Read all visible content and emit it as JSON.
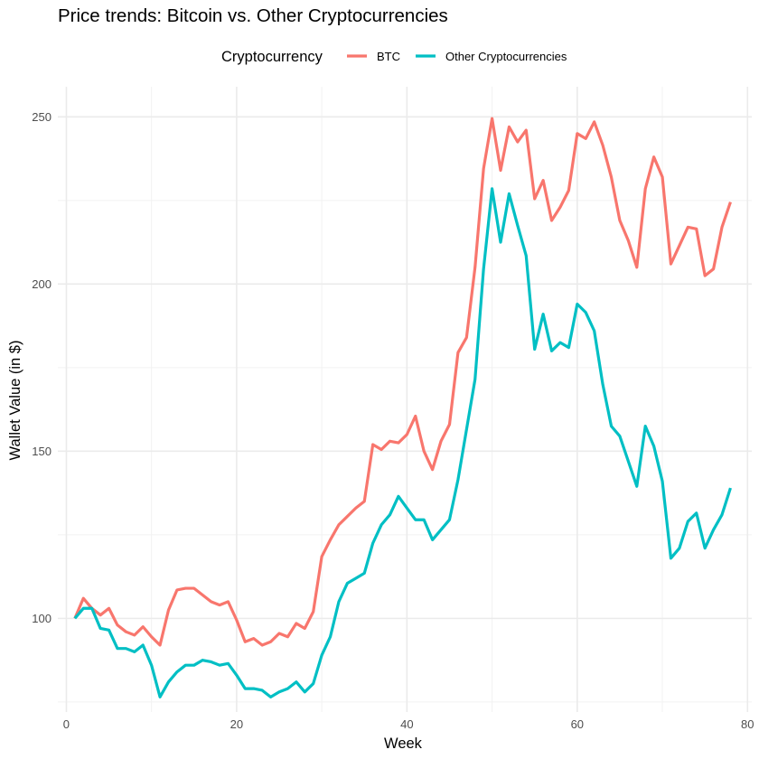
{
  "chart_data": {
    "type": "line",
    "title": "Price trends: Bitcoin vs. Other Cryptocurrencies",
    "xlabel": "Week",
    "ylabel": "Wallet Value (in $)",
    "xlim": [
      -1,
      80.5
    ],
    "ylim": [
      72,
      259
    ],
    "x_ticks": [
      0,
      20,
      40,
      60,
      80
    ],
    "y_ticks": [
      100,
      150,
      200,
      250
    ],
    "x_minor": [
      10,
      30,
      50,
      70
    ],
    "y_minor": [
      75,
      125,
      175,
      225
    ],
    "grid": true,
    "legend": {
      "title": "Cryptocurrency",
      "position": "top"
    },
    "series": [
      {
        "name": "BTC",
        "color": "#F8766D",
        "x": [
          1,
          2,
          3,
          4,
          5,
          6,
          7,
          8,
          9,
          10,
          11,
          12,
          13,
          14,
          15,
          16,
          17,
          18,
          19,
          20,
          21,
          22,
          23,
          24,
          25,
          26,
          27,
          28,
          29,
          30,
          31,
          32,
          33,
          34,
          35,
          36,
          37,
          38,
          39,
          40,
          41,
          42,
          43,
          44,
          45,
          46,
          47,
          48,
          49,
          50,
          51,
          52,
          53,
          54,
          55,
          56,
          57,
          58,
          59,
          60,
          61,
          62,
          63,
          64,
          65,
          66,
          67,
          68,
          69,
          70,
          71,
          72,
          73,
          74,
          75,
          76,
          77,
          78
        ],
        "values": [
          100,
          106,
          103,
          101,
          103,
          98,
          96,
          95,
          97.5,
          94.5,
          92,
          102.5,
          108.5,
          109,
          109,
          107,
          105,
          104,
          105,
          99.5,
          93,
          94,
          92,
          93,
          95.5,
          94.5,
          98.5,
          97,
          102,
          118.5,
          123.5,
          128,
          130.5,
          133,
          135,
          152,
          150.5,
          153,
          152.5,
          155,
          160.5,
          150,
          144.5,
          153,
          158,
          179.5,
          184,
          205,
          234.5,
          249.5,
          234,
          247,
          242.5,
          246,
          225.5,
          231,
          219,
          223,
          228,
          245,
          243.5,
          248.5,
          241.5,
          232,
          219,
          213,
          205,
          228.5,
          238,
          232,
          206,
          211.5,
          217,
          216.5,
          202.5,
          204.5,
          217,
          224.5
        ]
      },
      {
        "name": "Other Cryptocurrencies",
        "color": "#00BFC4",
        "x": [
          1,
          2,
          3,
          4,
          5,
          6,
          7,
          8,
          9,
          10,
          11,
          12,
          13,
          14,
          15,
          16,
          17,
          18,
          19,
          20,
          21,
          22,
          23,
          24,
          25,
          26,
          27,
          28,
          29,
          30,
          31,
          32,
          33,
          34,
          35,
          36,
          37,
          38,
          39,
          40,
          41,
          42,
          43,
          44,
          45,
          46,
          47,
          48,
          49,
          50,
          51,
          52,
          53,
          54,
          55,
          56,
          57,
          58,
          59,
          60,
          61,
          62,
          63,
          64,
          65,
          66,
          67,
          68,
          69,
          70,
          71,
          72,
          73,
          74,
          75,
          76,
          77,
          78
        ],
        "values": [
          100,
          103,
          103,
          97,
          96.5,
          91,
          91,
          90,
          92,
          86,
          76.5,
          81,
          84,
          86,
          86,
          87.5,
          87,
          86,
          86.5,
          83,
          79,
          79,
          78.5,
          76.5,
          78,
          79,
          81,
          78,
          80.5,
          89,
          94.5,
          105,
          110.5,
          112,
          113.5,
          122.5,
          128,
          131,
          136.5,
          133,
          129.5,
          129.5,
          123.5,
          126.5,
          129.5,
          141.5,
          156.5,
          171.5,
          204.5,
          228.5,
          212.5,
          227,
          217.5,
          208.5,
          180.5,
          191,
          180,
          182.5,
          181,
          194,
          191.5,
          186,
          170,
          157.5,
          154.5,
          147,
          139.5,
          157.5,
          151.5,
          141,
          118,
          121,
          129,
          131.5,
          121,
          126.5,
          131,
          139
        ]
      }
    ]
  }
}
